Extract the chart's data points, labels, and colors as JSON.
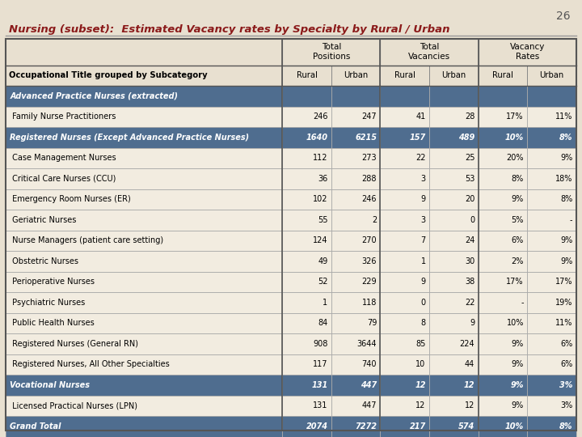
{
  "page_number": "26",
  "title": "Nursing (subset):  Estimated Vacancy rates by Specialty by Rural / Urban",
  "col_headers_sub": [
    "Rural",
    "Urban",
    "Rural",
    "Urban",
    "Rural",
    "Urban"
  ],
  "col_header_label": "Occupational Title grouped by Subcategory",
  "rows": [
    {
      "label": "Advanced Practice Nurses (extracted)",
      "values": [
        "",
        "",
        "",
        "",
        "",
        ""
      ],
      "style": "subheader_blue",
      "bold": true,
      "italic": true
    },
    {
      "label": " Family Nurse Practitioners",
      "values": [
        "246",
        "247",
        "41",
        "28",
        "17%",
        "11%"
      ],
      "style": "normal",
      "bold": false,
      "italic": false
    },
    {
      "label": "Registered Nurses (Except Advanced Practice Nurses)",
      "values": [
        "1640",
        "6215",
        "157",
        "489",
        "10%",
        "8%"
      ],
      "style": "bold_italic_dark",
      "bold": true,
      "italic": true
    },
    {
      "label": " Case Management Nurses",
      "values": [
        "112",
        "273",
        "22",
        "25",
        "20%",
        "9%"
      ],
      "style": "normal",
      "bold": false,
      "italic": false
    },
    {
      "label": " Critical Care Nurses (CCU)",
      "values": [
        "36",
        "288",
        "3",
        "53",
        "8%",
        "18%"
      ],
      "style": "normal",
      "bold": false,
      "italic": false
    },
    {
      "label": " Emergency Room Nurses (ER)",
      "values": [
        "102",
        "246",
        "9",
        "20",
        "9%",
        "8%"
      ],
      "style": "normal",
      "bold": false,
      "italic": false
    },
    {
      "label": " Geriatric Nurses",
      "values": [
        "55",
        "2",
        "3",
        "0",
        "5%",
        "-"
      ],
      "style": "normal",
      "bold": false,
      "italic": false
    },
    {
      "label": " Nurse Managers (patient care setting)",
      "values": [
        "124",
        "270",
        "7",
        "24",
        "6%",
        "9%"
      ],
      "style": "normal",
      "bold": false,
      "italic": false
    },
    {
      "label": " Obstetric Nurses",
      "values": [
        "49",
        "326",
        "1",
        "30",
        "2%",
        "9%"
      ],
      "style": "normal",
      "bold": false,
      "italic": false
    },
    {
      "label": " Perioperative Nurses",
      "values": [
        "52",
        "229",
        "9",
        "38",
        "17%",
        "17%"
      ],
      "style": "normal",
      "bold": false,
      "italic": false
    },
    {
      "label": " Psychiatric Nurses",
      "values": [
        "1",
        "118",
        "0",
        "22",
        "-",
        "19%"
      ],
      "style": "normal",
      "bold": false,
      "italic": false
    },
    {
      "label": " Public Health Nurses",
      "values": [
        "84",
        "79",
        "8",
        "9",
        "10%",
        "11%"
      ],
      "style": "normal",
      "bold": false,
      "italic": false
    },
    {
      "label": " Registered Nurses (General RN)",
      "values": [
        "908",
        "3644",
        "85",
        "224",
        "9%",
        "6%"
      ],
      "style": "normal",
      "bold": false,
      "italic": false
    },
    {
      "label": " Registered Nurses, All Other Specialties",
      "values": [
        "117",
        "740",
        "10",
        "44",
        "9%",
        "6%"
      ],
      "style": "normal",
      "bold": false,
      "italic": false
    },
    {
      "label": "Vocational Nurses",
      "values": [
        "131",
        "447",
        "12",
        "12",
        "9%",
        "3%"
      ],
      "style": "subheader_blue",
      "bold": true,
      "italic": true
    },
    {
      "label": " Licensed Practical Nurses (LPN)",
      "values": [
        "131",
        "447",
        "12",
        "12",
        "9%",
        "3%"
      ],
      "style": "normal",
      "bold": false,
      "italic": false
    },
    {
      "label": "Grand Total",
      "values": [
        "2074",
        "7272",
        "217",
        "574",
        "10%",
        "8%"
      ],
      "style": "grand_total",
      "bold": true,
      "italic": true
    }
  ],
  "bg_color": "#e8e0d0",
  "subheader_blue_bg": "#4f6d8f",
  "subheader_blue_text": "#ffffff",
  "grand_total_bg": "#4f6d8f",
  "grand_total_text": "#ffffff",
  "bold_italic_dark_bg": "#4f6d8f",
  "bold_italic_dark_text": "#ffffff",
  "normal_bg": "#f2ece0",
  "normal_text": "#000000",
  "title_color": "#8b1a1a",
  "page_num_color": "#555555"
}
